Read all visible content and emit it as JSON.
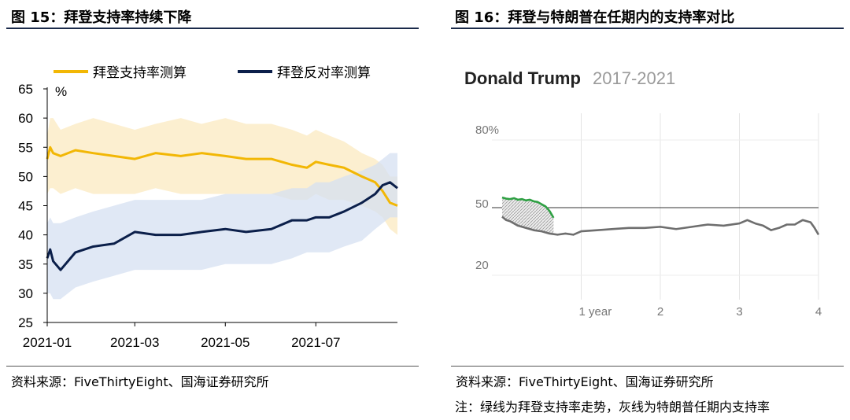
{
  "left": {
    "title": "图 15：拜登支持率持续下降",
    "source": "资料来源：FiveThirtyEight、国海证券研究所",
    "chart_data": {
      "type": "line",
      "ylabel": "%",
      "ylim": [
        25,
        65
      ],
      "yticks": [
        25,
        30,
        35,
        40,
        45,
        50,
        55,
        60,
        65
      ],
      "x_range": [
        "2021-01-01",
        "2021-08-25"
      ],
      "xticks": [
        "2021-01",
        "2021-03",
        "2021-05",
        "2021-07"
      ],
      "legend_position": "top",
      "grid": false,
      "series": [
        {
          "name": "拜登支持率测算",
          "color": "#f2b705",
          "band_color": "#fbeac0",
          "dates": [
            "2021-01-01",
            "2021-01-03",
            "2021-01-05",
            "2021-01-10",
            "2021-01-20",
            "2021-02-01",
            "2021-02-15",
            "2021-03-01",
            "2021-03-15",
            "2021-04-01",
            "2021-04-15",
            "2021-05-01",
            "2021-05-15",
            "2021-06-01",
            "2021-06-15",
            "2021-06-25",
            "2021-07-01",
            "2021-07-10",
            "2021-07-20",
            "2021-08-01",
            "2021-08-10",
            "2021-08-15",
            "2021-08-20",
            "2021-08-25"
          ],
          "values": [
            53.0,
            55.0,
            54.0,
            53.5,
            54.5,
            54.0,
            53.5,
            53.0,
            54.0,
            53.5,
            54.0,
            53.5,
            53.0,
            53.0,
            52.0,
            51.5,
            52.5,
            52.0,
            51.5,
            50.0,
            49.0,
            47.5,
            45.5,
            45.0
          ],
          "band_low": [
            47,
            48,
            48,
            47,
            48,
            47,
            47,
            47,
            48,
            47,
            47,
            47,
            47,
            47,
            46,
            46,
            47,
            46,
            46,
            45,
            44,
            43,
            41,
            40
          ],
          "band_high": [
            57,
            60,
            60,
            58,
            59,
            60,
            59,
            58,
            59,
            60,
            59,
            60,
            59,
            59,
            58,
            57,
            58,
            57,
            56,
            54,
            53,
            52,
            50,
            50
          ]
        },
        {
          "name": "拜登反对率测算",
          "color": "#0b1f4a",
          "band_color": "#d6e0f2",
          "dates": [
            "2021-01-01",
            "2021-01-03",
            "2021-01-05",
            "2021-01-10",
            "2021-01-20",
            "2021-02-01",
            "2021-02-15",
            "2021-03-01",
            "2021-03-15",
            "2021-04-01",
            "2021-04-15",
            "2021-05-01",
            "2021-05-15",
            "2021-06-01",
            "2021-06-15",
            "2021-06-25",
            "2021-07-01",
            "2021-07-10",
            "2021-07-20",
            "2021-08-01",
            "2021-08-10",
            "2021-08-15",
            "2021-08-20",
            "2021-08-25"
          ],
          "values": [
            36.0,
            37.5,
            35.5,
            34.0,
            37.0,
            38.0,
            38.5,
            40.5,
            40.0,
            40.0,
            40.5,
            41.0,
            40.5,
            41.0,
            42.5,
            42.5,
            43.0,
            43.0,
            44.0,
            45.5,
            47.0,
            48.5,
            49.0,
            48.0
          ],
          "band_low": [
            30,
            30,
            29,
            29,
            31,
            32,
            33,
            34,
            34,
            34,
            34,
            35,
            35,
            35,
            36,
            37,
            37,
            37,
            38,
            39,
            41,
            42,
            43,
            43
          ],
          "band_high": [
            42,
            43,
            42,
            42,
            43,
            44,
            45,
            46,
            46,
            46,
            46,
            47,
            47,
            47,
            48,
            48,
            49,
            49,
            50,
            51,
            52,
            53,
            54,
            54
          ]
        }
      ]
    }
  },
  "right": {
    "title": "图 16：拜登与特朗普在任期内的支持率对比",
    "source": "资料来源：FiveThirtyEight、国海证券研究所",
    "note": "注：绿线为拜登支持率走势，灰线为特朗普任期内支持率",
    "chart_data": {
      "type": "line",
      "title": "Donald Trump",
      "subtitle": "2017-2021",
      "ylim": [
        10,
        90
      ],
      "yticks": [
        "80%",
        "50",
        "20"
      ],
      "xlim": [
        0,
        4
      ],
      "xticks": [
        "1 year",
        "2",
        "3",
        "4"
      ],
      "reference_line": 50,
      "series": [
        {
          "name": "Biden",
          "color": "#2ea043",
          "x": [
            0.0,
            0.05,
            0.1,
            0.15,
            0.2,
            0.25,
            0.3,
            0.35,
            0.4,
            0.45,
            0.5,
            0.55,
            0.6,
            0.65
          ],
          "values": [
            54.5,
            54.0,
            53.8,
            54.2,
            53.5,
            53.8,
            53.2,
            53.5,
            52.8,
            52.5,
            51.5,
            50.5,
            48.5,
            45.5
          ]
        },
        {
          "name": "Trump",
          "color": "#6e6e6e",
          "x": [
            0.0,
            0.05,
            0.1,
            0.2,
            0.3,
            0.4,
            0.5,
            0.6,
            0.7,
            0.8,
            0.9,
            1.0,
            1.2,
            1.4,
            1.6,
            1.8,
            2.0,
            2.2,
            2.4,
            2.6,
            2.8,
            3.0,
            3.1,
            3.2,
            3.3,
            3.4,
            3.5,
            3.6,
            3.7,
            3.8,
            3.9,
            3.95,
            4.0
          ],
          "values": [
            46,
            44.5,
            44,
            42,
            41,
            40,
            39.5,
            38.5,
            38,
            38.5,
            38,
            39.5,
            40,
            40.5,
            41,
            41,
            41.5,
            40.5,
            41.5,
            42.5,
            42,
            43,
            44.5,
            43,
            42,
            40,
            41,
            42.5,
            42.5,
            44.5,
            43.5,
            41,
            38
          ]
        }
      ]
    }
  }
}
